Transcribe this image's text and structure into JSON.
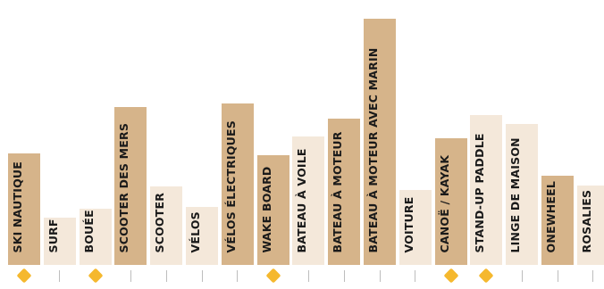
{
  "colors": {
    "dark": "#d6b48a",
    "light": "#f4e8da",
    "marker": "#f5b82e",
    "tick": "#bdbdbd"
  },
  "chart_data": {
    "type": "bar",
    "categories": [
      "SKI NAUTIQUE",
      "SURF",
      "BOUÉE",
      "SCOOTER DES MERS",
      "SCOOTER",
      "VÉLOS",
      "VÉLOS ÉLECTRIQUES",
      "WAKE BOARD",
      "BATEAU À VOILE",
      "BATEAU À MOTEUR",
      "BATEAU À MOTEUR AVEC MARIN",
      "VOITURE",
      "CANOË / KAYAK",
      "STAND-UP PADDLE",
      "LINGE DE MAISON",
      "ONEWHEEL",
      "ROSALIES"
    ],
    "values": [
      130,
      55,
      66,
      184,
      92,
      68,
      189,
      128,
      150,
      171,
      288,
      87,
      148,
      175,
      165,
      104,
      93
    ],
    "shade": [
      "dark",
      "light",
      "light",
      "dark",
      "light",
      "light",
      "dark",
      "dark",
      "light",
      "dark",
      "dark",
      "light",
      "dark",
      "light",
      "light",
      "dark",
      "light"
    ],
    "highlighted": [
      true,
      false,
      true,
      false,
      false,
      false,
      false,
      true,
      false,
      false,
      false,
      false,
      true,
      true,
      false,
      false,
      false
    ],
    "ylim": [
      0,
      300
    ]
  }
}
